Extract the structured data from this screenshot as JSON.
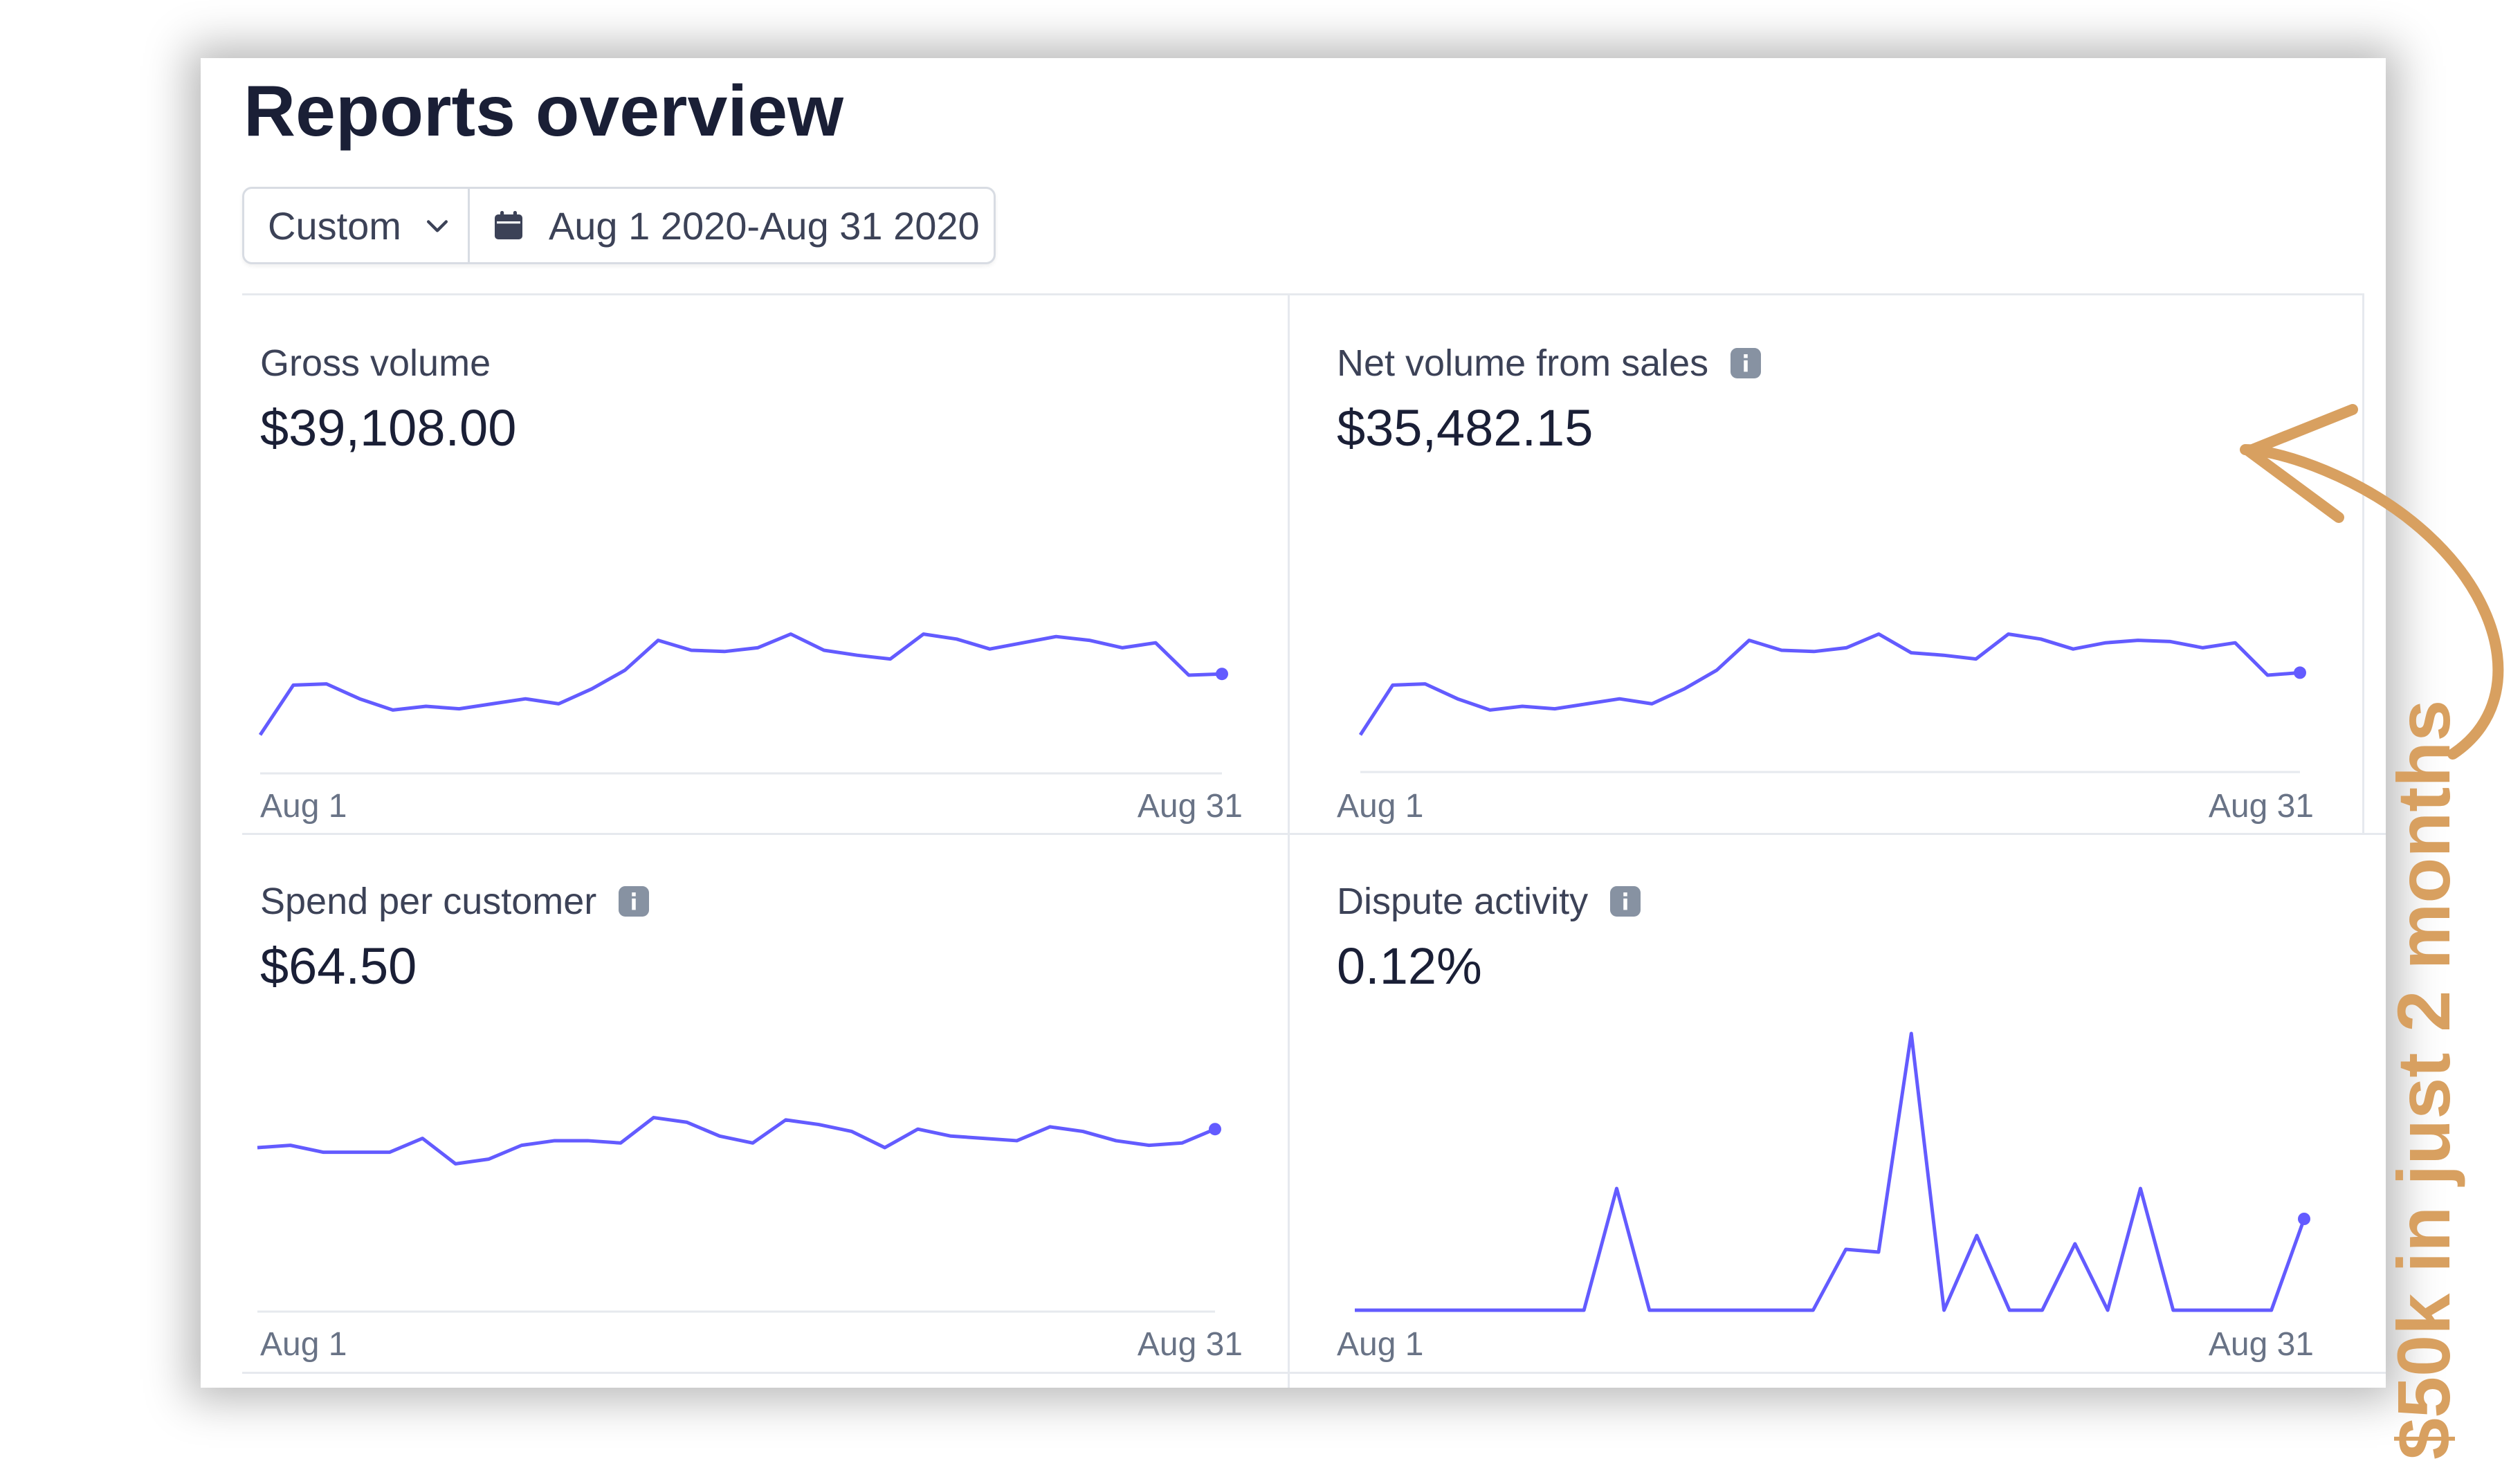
{
  "header": {
    "title": "Reports overview"
  },
  "filters": {
    "range_label": "Custom",
    "date_range": "Aug 1 2020-Aug 31 2020"
  },
  "metrics": [
    {
      "label": "Gross volume",
      "value": "$39,108.00",
      "has_info": false,
      "x_start": "Aug 1",
      "x_end": "Aug 31",
      "points": [
        0.12,
        0.52,
        0.53,
        0.41,
        0.32,
        0.35,
        0.33,
        0.37,
        0.41,
        0.37,
        0.49,
        0.64,
        0.88,
        0.8,
        0.79,
        0.82,
        0.93,
        0.8,
        0.76,
        0.73,
        0.93,
        0.89,
        0.81,
        0.86,
        0.91,
        0.88,
        0.82,
        0.86,
        0.6,
        0.61
      ]
    },
    {
      "label": "Net volume from sales",
      "value": "$35,482.15",
      "has_info": true,
      "x_start": "Aug 1",
      "x_end": "Aug 31",
      "points": [
        0.12,
        0.52,
        0.53,
        0.41,
        0.32,
        0.35,
        0.33,
        0.37,
        0.41,
        0.37,
        0.49,
        0.64,
        0.88,
        0.8,
        0.79,
        0.82,
        0.93,
        0.78,
        0.76,
        0.73,
        0.93,
        0.89,
        0.81,
        0.86,
        0.88,
        0.87,
        0.82,
        0.86,
        0.6,
        0.62
      ]
    },
    {
      "label": "Spend per customer",
      "value": "$64.50",
      "has_info": true,
      "x_start": "Aug 1",
      "x_end": "Aug 31",
      "points": [
        0.56,
        0.57,
        0.54,
        0.54,
        0.54,
        0.6,
        0.49,
        0.51,
        0.57,
        0.59,
        0.59,
        0.58,
        0.69,
        0.67,
        0.61,
        0.58,
        0.68,
        0.66,
        0.63,
        0.56,
        0.64,
        0.61,
        0.6,
        0.59,
        0.65,
        0.63,
        0.59,
        0.57,
        0.58,
        0.64
      ]
    },
    {
      "label": "Dispute activity",
      "value": "0.12%",
      "has_info": true,
      "x_start": "Aug 1",
      "x_end": "Aug 31",
      "points": [
        0.0,
        0.0,
        0.0,
        0.0,
        0.0,
        0.0,
        0.0,
        0.0,
        0.44,
        0.0,
        0.0,
        0.0,
        0.0,
        0.0,
        0.0,
        0.22,
        0.21,
        1.0,
        0.0,
        0.27,
        0.0,
        0.0,
        0.24,
        0.0,
        0.44,
        0.0,
        0.0,
        0.0,
        0.0,
        0.33
      ]
    }
  ],
  "annotation": {
    "text": "$50k in just 2 months"
  },
  "colors": {
    "line": "#635bff",
    "annotation": "#d8a060"
  },
  "icons": {
    "range_dropdown": "chevron-down-icon",
    "date": "calendar-icon",
    "info": "info-icon",
    "annotation_arrow": "curved-arrow-icon"
  }
}
